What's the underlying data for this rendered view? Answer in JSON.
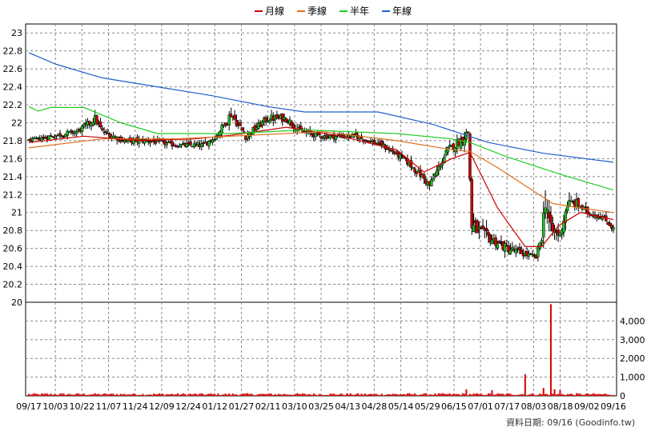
{
  "chart_data": {
    "type": "candlestick",
    "legend": {
      "placement": "top-center",
      "items": [
        {
          "label": "月線",
          "color": "#cc0000"
        },
        {
          "label": "季線",
          "color": "#e07020"
        },
        {
          "label": "半年",
          "color": "#22cc22"
        },
        {
          "label": "年線",
          "color": "#1e5fcc"
        }
      ]
    },
    "price_axis": {
      "ticks": [
        "23",
        "22.8",
        "22.6",
        "22.4",
        "22.2",
        "22",
        "21.8",
        "21.6",
        "21.4",
        "21.2",
        "21",
        "20.8",
        "20.6",
        "20.4",
        "20.2",
        "20"
      ],
      "ylim": [
        20,
        23.1
      ]
    },
    "volume_axis": {
      "ticks": [
        "4,000",
        "3,000",
        "2,000",
        "1,000",
        "0"
      ],
      "ylim": [
        0,
        5000
      ]
    },
    "x_ticks": [
      "09/17",
      "10/03",
      "10/22",
      "11/07",
      "11/24",
      "12/09",
      "12/24",
      "01/12",
      "01/27",
      "02/11",
      "03/10",
      "03/25",
      "04/13",
      "04/28",
      "05/14",
      "05/29",
      "06/15",
      "07/01",
      "07/17",
      "08/03",
      "08/18",
      "09/02",
      "09/16"
    ],
    "grid": true,
    "up_color": "#22bb22",
    "down_color": "#cc0000",
    "anchors": [
      [
        0,
        21.8,
        0.03
      ],
      [
        12,
        21.85,
        0.06
      ],
      [
        26,
        21.9,
        0.06
      ],
      [
        30,
        21.95,
        0.07
      ],
      [
        36,
        22.05,
        0.08
      ],
      [
        40,
        21.9,
        0.07
      ],
      [
        52,
        21.8,
        0.06
      ],
      [
        66,
        21.8,
        0.06
      ],
      [
        80,
        21.75,
        0.05
      ],
      [
        95,
        21.75,
        0.06
      ],
      [
        102,
        21.85,
        0.06
      ],
      [
        110,
        22.1,
        0.1
      ],
      [
        118,
        21.85,
        0.08
      ],
      [
        130,
        22.05,
        0.08
      ],
      [
        140,
        22.05,
        0.08
      ],
      [
        148,
        21.9,
        0.07
      ],
      [
        160,
        21.85,
        0.06
      ],
      [
        178,
        21.85,
        0.06
      ],
      [
        192,
        21.75,
        0.06
      ],
      [
        204,
        21.6,
        0.06
      ],
      [
        214,
        21.4,
        0.08
      ],
      [
        218,
        21.3,
        0.08
      ],
      [
        223,
        21.5,
        0.08
      ],
      [
        228,
        21.7,
        0.08
      ],
      [
        235,
        21.8,
        0.1
      ],
      [
        239,
        21.9,
        0.12
      ],
      [
        241,
        20.85,
        0.2
      ],
      [
        248,
        20.75,
        0.12
      ],
      [
        260,
        20.6,
        0.1
      ],
      [
        268,
        20.55,
        0.08
      ],
      [
        276,
        20.5,
        0.05
      ],
      [
        279,
        20.75,
        0.15
      ],
      [
        281,
        21.15,
        0.25
      ],
      [
        284,
        20.8,
        0.18
      ],
      [
        289,
        20.75,
        0.1
      ],
      [
        293,
        21.1,
        0.12
      ],
      [
        298,
        21.1,
        0.1
      ],
      [
        304,
        21.0,
        0.07
      ],
      [
        312,
        20.95,
        0.06
      ],
      [
        318,
        20.82,
        0.05
      ]
    ],
    "ma_series": [
      {
        "name": "月線",
        "color": "#cc0000",
        "points": [
          [
            0,
            21.78
          ],
          [
            30,
            21.85
          ],
          [
            60,
            21.8
          ],
          [
            90,
            21.82
          ],
          [
            110,
            21.86
          ],
          [
            140,
            21.95
          ],
          [
            170,
            21.85
          ],
          [
            200,
            21.7
          ],
          [
            215,
            21.45
          ],
          [
            230,
            21.6
          ],
          [
            240,
            21.67
          ],
          [
            255,
            21.05
          ],
          [
            270,
            20.62
          ],
          [
            279,
            20.62
          ],
          [
            288,
            20.85
          ],
          [
            300,
            21.0
          ],
          [
            318,
            20.92
          ]
        ]
      },
      {
        "name": "季線",
        "color": "#e07020",
        "points": [
          [
            0,
            21.72
          ],
          [
            40,
            21.82
          ],
          [
            80,
            21.82
          ],
          [
            120,
            21.86
          ],
          [
            160,
            21.9
          ],
          [
            200,
            21.8
          ],
          [
            230,
            21.7
          ],
          [
            240,
            21.68
          ],
          [
            255,
            21.5
          ],
          [
            270,
            21.3
          ],
          [
            285,
            21.1
          ],
          [
            300,
            21.05
          ],
          [
            318,
            21.0
          ]
        ]
      },
      {
        "name": "半年",
        "color": "#22cc22",
        "points": [
          [
            0,
            22.18
          ],
          [
            5,
            22.13
          ],
          [
            12,
            22.17
          ],
          [
            30,
            22.17
          ],
          [
            50,
            22.0
          ],
          [
            70,
            21.88
          ],
          [
            110,
            21.88
          ],
          [
            150,
            21.92
          ],
          [
            200,
            21.88
          ],
          [
            230,
            21.82
          ],
          [
            240,
            21.78
          ],
          [
            260,
            21.62
          ],
          [
            290,
            21.42
          ],
          [
            318,
            21.25
          ]
        ]
      },
      {
        "name": "年線",
        "color": "#1e5fcc",
        "points": [
          [
            0,
            22.78
          ],
          [
            15,
            22.65
          ],
          [
            40,
            22.5
          ],
          [
            70,
            22.4
          ],
          [
            100,
            22.3
          ],
          [
            130,
            22.18
          ],
          [
            150,
            22.12
          ],
          [
            190,
            22.12
          ],
          [
            220,
            21.98
          ],
          [
            250,
            21.78
          ],
          [
            280,
            21.66
          ],
          [
            318,
            21.56
          ]
        ]
      }
    ],
    "volume_spikes": [
      [
        270,
        1150
      ],
      [
        284,
        4900
      ],
      [
        286,
        350
      ],
      [
        238,
        350
      ],
      [
        252,
        300
      ],
      [
        280,
        420
      ],
      [
        289,
        300
      ]
    ],
    "footer_label": "資料日期: 09/16 (Goodinfo.tw)"
  }
}
